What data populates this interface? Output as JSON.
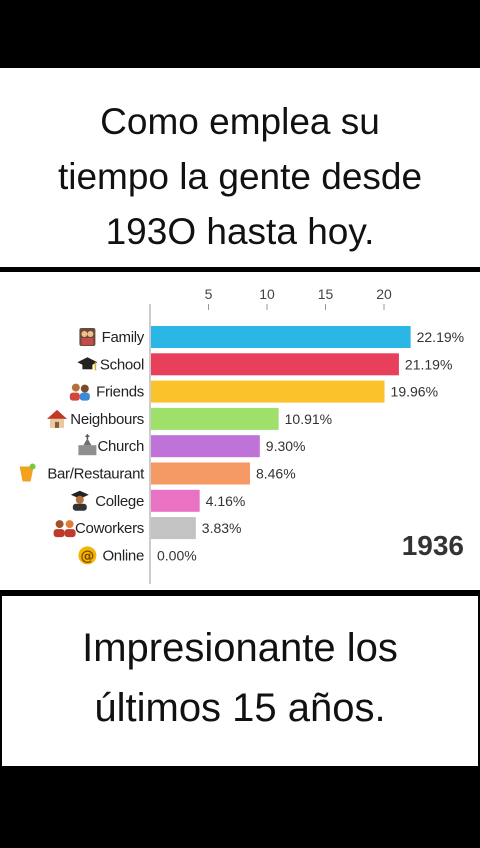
{
  "top_caption": {
    "line1": "Como emplea su",
    "line2": "tiempo la gente desde",
    "line3": "193O hasta hoy."
  },
  "bottom_caption": {
    "line1": "Impresionante los",
    "line2": "últimos 15 años."
  },
  "chart_data": {
    "type": "bar",
    "orientation": "horizontal",
    "year": "1936",
    "xlim": [
      0,
      22.5
    ],
    "xticks": [
      5,
      10,
      15,
      20
    ],
    "grid": false,
    "categories": [
      "Family",
      "School",
      "Friends",
      "Neighbours",
      "Church",
      "Bar/Restaurant",
      "College",
      "Coworkers",
      "Online"
    ],
    "icons": [
      "family-icon",
      "graduation-cap-icon",
      "friends-icon",
      "house-icon",
      "church-icon",
      "cocktail-icon",
      "college-student-icon",
      "coworkers-icon",
      "at-sign-icon"
    ],
    "values": [
      22.19,
      21.19,
      19.96,
      10.91,
      9.3,
      8.46,
      4.16,
      3.83,
      0.0
    ],
    "value_labels": [
      "22.19%",
      "21.19%",
      "19.96%",
      "10.91%",
      "9.30%",
      "8.46%",
      "4.16%",
      "3.83%",
      "0.00%"
    ],
    "colors": [
      "#2bb7e6",
      "#e8405a",
      "#fbc32b",
      "#9ee06a",
      "#bf72d8",
      "#f59a64",
      "#ea72c4",
      "#c3c3c3",
      "#ffffff"
    ]
  }
}
